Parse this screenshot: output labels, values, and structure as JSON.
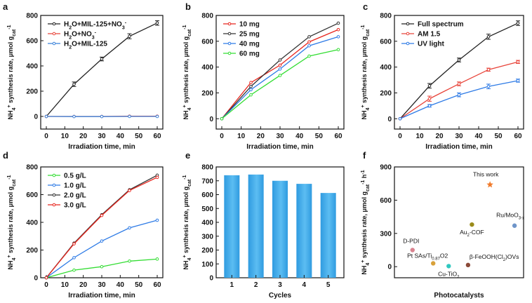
{
  "chart_data": [
    {
      "panel": "a",
      "type": "line",
      "xlabel": "Irradiation time, min",
      "ylabel": "NH4+ synthesis rate, μmol gcat-1",
      "ylabel_parts": {
        "a": "NH",
        "b": "4",
        "c": "+",
        "d": " synthesis rate, μmol g",
        "e": "cat",
        "f": "-1"
      },
      "xlim": [
        0,
        60
      ],
      "ylim": [
        -100,
        800
      ],
      "xticks": [
        0,
        10,
        20,
        30,
        40,
        50,
        60
      ],
      "yticks": [
        0,
        200,
        400,
        600,
        800
      ],
      "legend_position": "top-left",
      "series": [
        {
          "name": "H2O+MIL-125+NO3-",
          "label_parts": {
            "a": "H",
            "b": "2",
            "c": "O+MIL-125+NO",
            "d": "3",
            "e": "-"
          },
          "color": "#222222",
          "x": [
            0,
            15,
            30,
            45,
            60
          ],
          "y": [
            0,
            255,
            455,
            635,
            740
          ],
          "err": [
            0,
            18,
            15,
            20,
            18
          ]
        },
        {
          "name": "H2O+NO3-",
          "label_parts": {
            "a": "H",
            "b": "2",
            "c": "O+NO",
            "d": "3",
            "e": "-"
          },
          "color": "#e8443a",
          "x": [
            0,
            15,
            30,
            45,
            60
          ],
          "y": [
            0,
            0,
            0,
            2,
            2
          ],
          "err": [
            0,
            0,
            0,
            0,
            0
          ]
        },
        {
          "name": "H2O+MIL-125",
          "label_parts": {
            "a": "H",
            "b": "2",
            "c": "O+MIL-125",
            "d": "",
            "e": ""
          },
          "color": "#3b82d9",
          "x": [
            0,
            15,
            30,
            45,
            60
          ],
          "y": [
            0,
            -1,
            -1,
            0,
            0
          ],
          "err": [
            0,
            0,
            0,
            0,
            0
          ]
        }
      ]
    },
    {
      "panel": "b",
      "type": "line",
      "xlabel": "Irradiation time, min",
      "ylabel": "NH4+ synthesis rate, μmol gcat-1",
      "ylabel_parts": {
        "a": "NH",
        "b": "4",
        "c": "+",
        "d": " synthesis rate, μmol g",
        "e": "cat",
        "f": "-1"
      },
      "xlim": [
        0,
        60
      ],
      "ylim": [
        -80,
        800
      ],
      "xticks": [
        0,
        10,
        20,
        30,
        40,
        50,
        60
      ],
      "yticks": [
        0,
        200,
        400,
        600,
        800
      ],
      "legend_position": "top-left",
      "series": [
        {
          "name": "10 mg",
          "color": "#e8261e",
          "x": [
            0,
            15,
            30,
            45,
            60
          ],
          "y": [
            0,
            280,
            415,
            595,
            690
          ]
        },
        {
          "name": "25 mg",
          "color": "#333333",
          "x": [
            0,
            15,
            30,
            45,
            60
          ],
          "y": [
            0,
            250,
            455,
            635,
            740
          ]
        },
        {
          "name": "40 mg",
          "color": "#2e7be6",
          "x": [
            0,
            15,
            30,
            45,
            60
          ],
          "y": [
            0,
            225,
            385,
            565,
            635
          ]
        },
        {
          "name": "60 mg",
          "color": "#33dd33",
          "x": [
            0,
            15,
            30,
            45,
            60
          ],
          "y": [
            0,
            185,
            335,
            485,
            535
          ]
        }
      ]
    },
    {
      "panel": "c",
      "type": "line",
      "xlabel": "Irradiation time, min",
      "ylabel": "NH4+ synthesis rate, μmol gcat-1",
      "ylabel_parts": {
        "a": "NH",
        "b": "4",
        "c": "+",
        "d": " synthesis rate, μmol g",
        "e": "cat",
        "f": "-1"
      },
      "xlim": [
        0,
        60
      ],
      "ylim": [
        -80,
        800
      ],
      "xticks": [
        0,
        10,
        20,
        30,
        40,
        50,
        60
      ],
      "yticks": [
        0,
        200,
        400,
        600,
        800
      ],
      "legend_position": "top-left",
      "series": [
        {
          "name": "Full spectrum",
          "color": "#222222",
          "x": [
            0,
            15,
            30,
            45,
            60
          ],
          "y": [
            0,
            255,
            455,
            635,
            740
          ],
          "err": [
            0,
            18,
            15,
            20,
            18
          ]
        },
        {
          "name": "AM 1.5",
          "color": "#e8443a",
          "x": [
            0,
            15,
            30,
            45,
            60
          ],
          "y": [
            0,
            155,
            270,
            380,
            440
          ],
          "err": [
            0,
            20,
            15,
            12,
            12
          ]
        },
        {
          "name": "UV light",
          "color": "#2e7be6",
          "x": [
            0,
            15,
            30,
            45,
            60
          ],
          "y": [
            0,
            100,
            185,
            250,
            295
          ],
          "err": [
            0,
            10,
            15,
            18,
            12
          ]
        }
      ]
    },
    {
      "panel": "d",
      "type": "line",
      "xlabel": "Irradiation time, min",
      "ylabel": "NH4+ synthesis rate, μmol gcat-1",
      "ylabel_parts": {
        "a": "NH",
        "b": "4",
        "c": "+",
        "d": " synthesis rate, μmol g",
        "e": "cat",
        "f": "-1"
      },
      "xlim": [
        0,
        60
      ],
      "ylim": [
        0,
        800
      ],
      "xticks": [
        0,
        10,
        20,
        30,
        40,
        50,
        60
      ],
      "yticks": [
        0,
        200,
        400,
        600,
        800
      ],
      "legend_position": "top-left",
      "series": [
        {
          "name": "0.5 g/L",
          "color": "#33dd33",
          "x": [
            0,
            15,
            30,
            45,
            60
          ],
          "y": [
            0,
            55,
            80,
            120,
            135
          ]
        },
        {
          "name": "1.0 g/L",
          "color": "#2e7be6",
          "x": [
            0,
            15,
            30,
            45,
            60
          ],
          "y": [
            0,
            145,
            265,
            360,
            415
          ]
        },
        {
          "name": "2.0 g/L",
          "color": "#333333",
          "x": [
            0,
            15,
            30,
            45,
            60
          ],
          "y": [
            0,
            250,
            455,
            635,
            740
          ]
        },
        {
          "name": "3.0 g/L",
          "color": "#e8261e",
          "x": [
            0,
            15,
            30,
            45,
            60
          ],
          "y": [
            0,
            245,
            450,
            630,
            725
          ]
        }
      ]
    },
    {
      "panel": "e",
      "type": "bar",
      "xlabel": "Cycles",
      "ylabel": "NH4+ synthesis rate, μmol gcat-1",
      "ylabel_parts": {
        "a": "NH",
        "b": "4",
        "c": "+",
        "d": " synthesis rate, μmol g",
        "e": "cat",
        "f": "-1"
      },
      "categories": [
        "1",
        "2",
        "3",
        "4",
        "5"
      ],
      "values": [
        740,
        745,
        700,
        678,
        612
      ],
      "ylim": [
        0,
        800
      ],
      "yticks": [
        0,
        100,
        200,
        300,
        400,
        500,
        600,
        700,
        800
      ]
    },
    {
      "panel": "f",
      "type": "scatter",
      "xlabel": "Photocatalysts",
      "ylabel": "NH4+ synthesis rate, μmol gcat-1 h-1",
      "ylabel_parts": {
        "a": "NH",
        "b": "4",
        "c": "+",
        "d": " synthesis rate, μmol g",
        "e": "cat",
        "f": "-1",
        "g": " h",
        "h": "-1"
      },
      "ylim": [
        -100,
        900
      ],
      "yticks": [
        0,
        300,
        600,
        900
      ],
      "points": [
        {
          "label": "This work",
          "label_parts": {
            "a": "This work",
            "b": "",
            "c": ""
          },
          "xi": 0.74,
          "y": 740,
          "color": "#f07a2a",
          "marker": "star"
        },
        {
          "label": "Ru/MoO3-x",
          "label_parts": {
            "a": "Ru/MoO",
            "b": "3-x",
            "c": ""
          },
          "xi": 0.93,
          "y": 370,
          "color": "#6f95c9",
          "marker": "circle"
        },
        {
          "label": "Au2-COF",
          "label_parts": {
            "a": "Au",
            "b": "2",
            "c": "-COF"
          },
          "xi": 0.6,
          "y": 380,
          "color": "#9a8b1a",
          "marker": "circle"
        },
        {
          "label": "D-PDI",
          "label_parts": {
            "a": "D-PDI",
            "b": "",
            "c": ""
          },
          "xi": 0.14,
          "y": 150,
          "color": "#d9828f",
          "marker": "circle"
        },
        {
          "label": "Pt SAs/Ti0.87O2",
          "label_parts": {
            "a": "Pt SAs/Ti",
            "b": "0.87",
            "c": "O2"
          },
          "xi": 0.3,
          "y": 30,
          "color": "#d8a13a",
          "marker": "circle"
        },
        {
          "label": "Cu-TiO2",
          "label_parts": {
            "a": "Cu-TiO",
            "b": "2",
            "c": ""
          },
          "xi": 0.42,
          "y": 5,
          "color": "#30c8c0",
          "marker": "circle"
        },
        {
          "label": "β-FeOOH(Cl2)OVs",
          "label_parts": {
            "a": "β-FeOOH(Cl",
            "b": "2",
            "c": ")OVs"
          },
          "xi": 0.57,
          "y": 15,
          "color": "#8b4a38",
          "marker": "circle"
        }
      ]
    }
  ]
}
